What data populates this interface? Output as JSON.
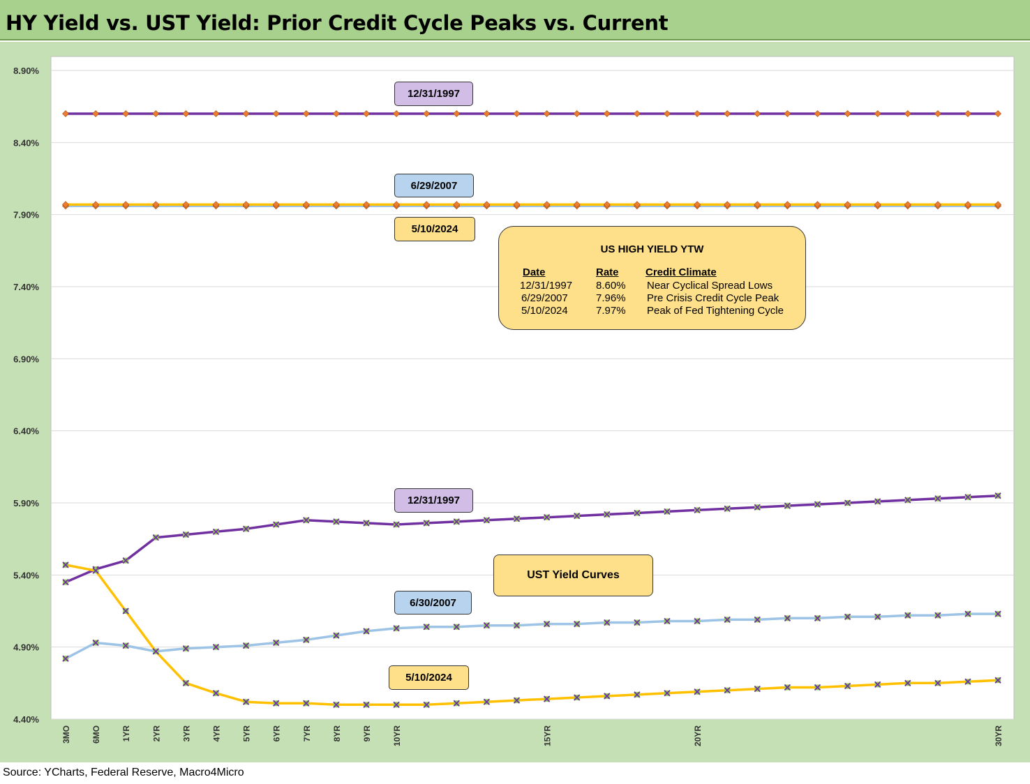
{
  "title": "HY Yield vs. UST Yield: Prior Credit Cycle Peaks vs. Current",
  "source": "Source: YCharts, Federal Reserve, Macro4Micro",
  "labels": {
    "hy_1997": "12/31/1997",
    "hy_2007": "6/29/2007",
    "hy_2024": "5/10/2024",
    "ust_1997": "12/31/1997",
    "ust_2007": "6/30/2007",
    "ust_2024": "5/10/2024",
    "ust_box": "UST Yield Curves"
  },
  "legend": {
    "title": "US HIGH YIELD YTW",
    "headers": [
      "Date",
      "Rate",
      "Credit Climate"
    ],
    "rows": [
      [
        "12/31/1997",
        "8.60%",
        "Near Cyclical Spread Lows"
      ],
      [
        "6/29/2007",
        "7.96%",
        "Pre Crisis Credit Cycle Peak"
      ],
      [
        "5/10/2024",
        "7.97%",
        "Peak of Fed Tightening Cycle"
      ]
    ]
  },
  "colors": {
    "purple": "#7030a0",
    "blue": "#9dc3e6",
    "gold": "#ffc000",
    "hy_marker": "#ed7d31",
    "ust_marker": "#92d050"
  },
  "chart_data": {
    "type": "line",
    "ylim": [
      4.4,
      8.9
    ],
    "yticks": [
      "8.90%",
      "8.40%",
      "7.90%",
      "7.40%",
      "6.90%",
      "6.40%",
      "5.90%",
      "5.40%",
      "4.90%",
      "4.40%"
    ],
    "x": [
      0.25,
      0.5,
      1,
      2,
      3,
      4,
      5,
      6,
      7,
      8,
      9,
      10,
      11,
      12,
      13,
      14,
      15,
      16,
      17,
      18,
      19,
      20,
      21,
      22,
      23,
      24,
      25,
      26,
      27,
      28,
      29,
      30
    ],
    "x_tick_labels": [
      "3MO",
      "6MO",
      "1YR",
      "2YR",
      "3YR",
      "4YR",
      "5YR",
      "6YR",
      "7YR",
      "8YR",
      "9YR",
      "10YR",
      "",
      "",
      "",
      "",
      "15YR",
      "",
      "",
      "",
      "",
      "20YR",
      "",
      "",
      "",
      "",
      "",
      "",
      "",
      "",
      "",
      "30YR"
    ],
    "series": [
      {
        "name": "12/31/1997",
        "group": "hy",
        "values": [
          8.6,
          8.6,
          8.6,
          8.6,
          8.6,
          8.6,
          8.6,
          8.6,
          8.6,
          8.6,
          8.6,
          8.6,
          8.6,
          8.6,
          8.6,
          8.6,
          8.6,
          8.6,
          8.6,
          8.6,
          8.6,
          8.6,
          8.6,
          8.6,
          8.6,
          8.6,
          8.6,
          8.6,
          8.6,
          8.6,
          8.6,
          8.6
        ]
      },
      {
        "name": "6/29/2007",
        "group": "hy",
        "values": [
          7.96,
          7.96,
          7.96,
          7.96,
          7.96,
          7.96,
          7.96,
          7.96,
          7.96,
          7.96,
          7.96,
          7.96,
          7.96,
          7.96,
          7.96,
          7.96,
          7.96,
          7.96,
          7.96,
          7.96,
          7.96,
          7.96,
          7.96,
          7.96,
          7.96,
          7.96,
          7.96,
          7.96,
          7.96,
          7.96,
          7.96,
          7.96
        ]
      },
      {
        "name": "5/10/2024",
        "group": "hy",
        "values": [
          7.97,
          7.97,
          7.97,
          7.97,
          7.97,
          7.97,
          7.97,
          7.97,
          7.97,
          7.97,
          7.97,
          7.97,
          7.97,
          7.97,
          7.97,
          7.97,
          7.97,
          7.97,
          7.97,
          7.97,
          7.97,
          7.97,
          7.97,
          7.97,
          7.97,
          7.97,
          7.97,
          7.97,
          7.97,
          7.97,
          7.97,
          7.97
        ]
      },
      {
        "name": "12/31/1997",
        "group": "ust",
        "values": [
          5.35,
          5.44,
          5.5,
          5.66,
          5.68,
          5.7,
          5.72,
          5.75,
          5.78,
          5.77,
          5.76,
          5.75,
          5.76,
          5.77,
          5.78,
          5.79,
          5.8,
          5.81,
          5.82,
          5.83,
          5.84,
          5.85,
          5.86,
          5.87,
          5.88,
          5.89,
          5.9,
          5.91,
          5.92,
          5.93,
          5.94,
          5.95
        ]
      },
      {
        "name": "6/30/2007",
        "group": "ust",
        "values": [
          4.82,
          4.93,
          4.91,
          4.87,
          4.89,
          4.9,
          4.91,
          4.93,
          4.95,
          4.98,
          5.01,
          5.03,
          5.04,
          5.04,
          5.05,
          5.05,
          5.06,
          5.06,
          5.07,
          5.07,
          5.08,
          5.08,
          5.09,
          5.09,
          5.1,
          5.1,
          5.11,
          5.11,
          5.12,
          5.12,
          5.13,
          5.13
        ]
      },
      {
        "name": "5/10/2024",
        "group": "ust",
        "values": [
          5.47,
          5.43,
          5.15,
          4.87,
          4.65,
          4.58,
          4.52,
          4.51,
          4.51,
          4.5,
          4.5,
          4.5,
          4.5,
          4.51,
          4.52,
          4.53,
          4.54,
          4.55,
          4.56,
          4.57,
          4.58,
          4.59,
          4.6,
          4.61,
          4.62,
          4.62,
          4.63,
          4.64,
          4.65,
          4.65,
          4.66,
          4.67
        ]
      }
    ]
  }
}
